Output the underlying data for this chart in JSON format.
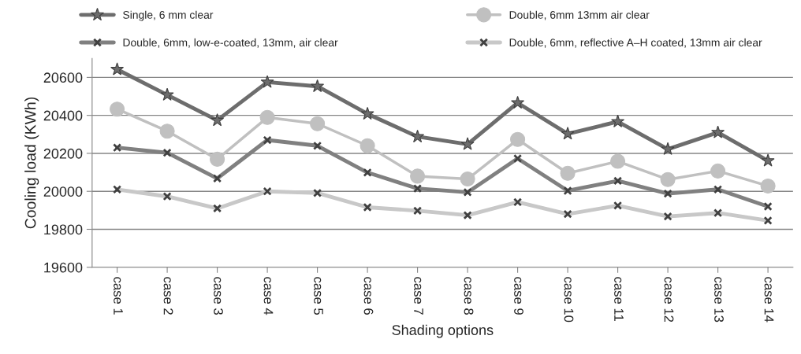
{
  "chart_data": {
    "type": "line",
    "xlabel": "Shading options",
    "ylabel": "Cooling load (KWh)",
    "categories": [
      "case 1",
      "case 2",
      "case 3",
      "case 4",
      "case 5",
      "case 6",
      "case 7",
      "case 8",
      "case 9",
      "case 10",
      "case 11",
      "case 12",
      "case 13",
      "case 14"
    ],
    "series": [
      {
        "name": "Single, 6 mm clear",
        "color": "#6d6d6d",
        "marker": "star",
        "values": [
          20642,
          20508,
          20374,
          20575,
          20553,
          20408,
          20288,
          20248,
          20466,
          20303,
          20367,
          20222,
          20310,
          20161
        ]
      },
      {
        "name": "Double, 6mm 13mm air clear",
        "color": "#c0c0c0",
        "marker": "circle",
        "values": [
          20433,
          20317,
          20169,
          20389,
          20356,
          20240,
          20080,
          20065,
          20273,
          20095,
          20158,
          20062,
          20107,
          20028
        ]
      },
      {
        "name": "Double, 6mm, low-e-coated, 13mm, air clear",
        "color": "#808080",
        "marker": "cross",
        "values": [
          20230,
          20203,
          20068,
          20270,
          20240,
          20099,
          20015,
          19995,
          20173,
          20003,
          20055,
          19988,
          20010,
          19920
        ]
      },
      {
        "name": "Double, 6mm, reflective A–H coated, 13mm air clear",
        "color": "#c8c8c8",
        "marker": "cross",
        "values": [
          20010,
          19973,
          19910,
          20000,
          19991,
          19916,
          19898,
          19874,
          19943,
          19880,
          19925,
          19868,
          19886,
          19846
        ]
      }
    ],
    "ylim": [
      19600,
      20700
    ],
    "yticks": [
      19600,
      19800,
      20000,
      20200,
      20400,
      20600
    ],
    "grid": "y",
    "legend": "top"
  }
}
